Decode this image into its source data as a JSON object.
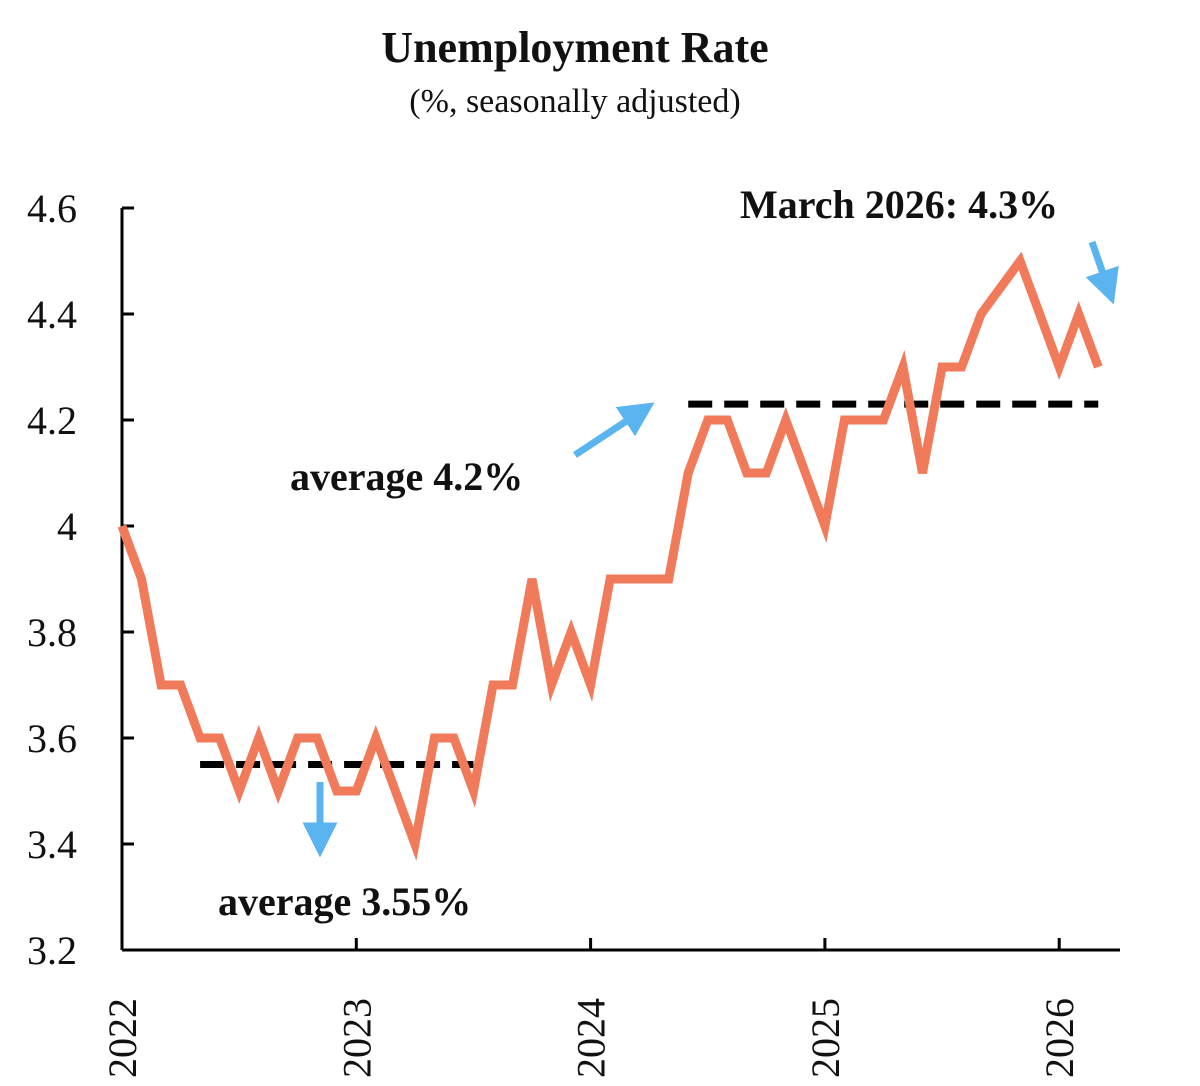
{
  "chart_data": {
    "type": "line",
    "title": "Unemployment Rate",
    "subtitle": "(%, seasonally adjusted)",
    "xlabel": "",
    "ylabel": "",
    "ylim": [
      3.2,
      4.6
    ],
    "yticks": [
      "3.2",
      "3.4",
      "3.6",
      "3.8",
      "4",
      "4.2",
      "4.4",
      "4.6"
    ],
    "xticks": [
      "2022",
      "2023",
      "2024",
      "2025",
      "2026"
    ],
    "grid": false,
    "legend": "none",
    "series": [
      {
        "color": "#f07a5a",
        "x": [
          "2022-01",
          "2022-02",
          "2022-03",
          "2022-04",
          "2022-05",
          "2022-06",
          "2022-07",
          "2022-08",
          "2022-09",
          "2022-10",
          "2022-11",
          "2022-12",
          "2023-01",
          "2023-02",
          "2023-03",
          "2023-04",
          "2023-05",
          "2023-06",
          "2023-07",
          "2023-08",
          "2023-09",
          "2023-10",
          "2023-11",
          "2023-12",
          "2024-01",
          "2024-02",
          "2024-03",
          "2024-04",
          "2024-05",
          "2024-06",
          "2024-07",
          "2024-08",
          "2024-09",
          "2024-10",
          "2024-11",
          "2024-12",
          "2025-01",
          "2025-02",
          "2025-03",
          "2025-04",
          "2025-05",
          "2025-06",
          "2025-07",
          "2025-08",
          "2025-09",
          "2025-10",
          "2025-11",
          "2025-12",
          "2026-01",
          "2026-02",
          "2026-03"
        ],
        "values": [
          4.0,
          3.9,
          3.7,
          3.7,
          3.6,
          3.6,
          3.5,
          3.6,
          3.5,
          3.6,
          3.6,
          3.5,
          3.5,
          3.6,
          3.5,
          3.4,
          3.6,
          3.6,
          3.5,
          3.7,
          3.7,
          3.9,
          3.7,
          3.8,
          3.7,
          3.9,
          3.9,
          3.9,
          3.9,
          4.1,
          4.2,
          4.2,
          4.1,
          4.1,
          4.2,
          4.1,
          4.0,
          4.2,
          4.2,
          4.2,
          4.3,
          4.1,
          4.3,
          4.3,
          4.4,
          4.45,
          4.5,
          4.4,
          4.3,
          4.4,
          4.3
        ]
      }
    ],
    "reference_lines": [
      {
        "label": "average 3.55%",
        "value": 3.55,
        "from": "2022-05",
        "to": "2023-07",
        "color": "#000000"
      },
      {
        "label": "average 4.2%",
        "value": 4.23,
        "from": "2024-06",
        "to": "2026-03",
        "color": "#000000"
      }
    ],
    "annotations": [
      {
        "text": "average 3.55%"
      },
      {
        "text": "average 4.2%"
      },
      {
        "text": "March 2026: 4.3%"
      }
    ],
    "colors": {
      "line": "#f07a5a",
      "arrow": "#5ab4f0",
      "axis": "#000000"
    }
  }
}
